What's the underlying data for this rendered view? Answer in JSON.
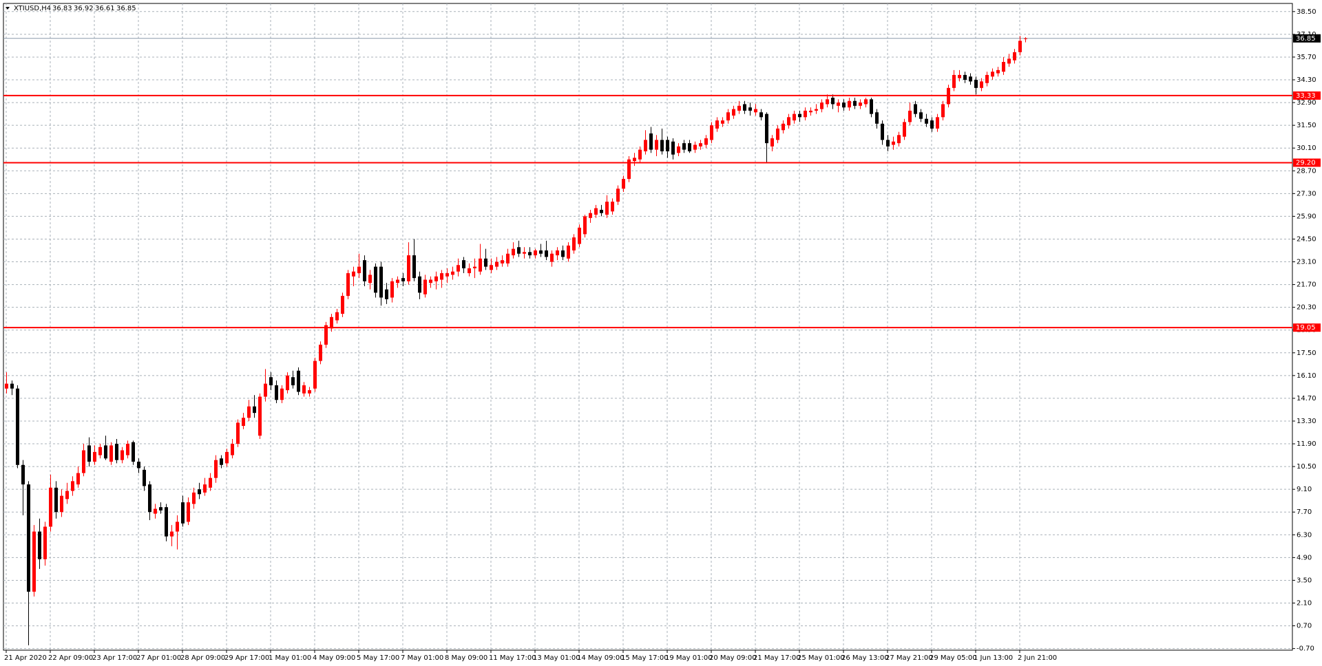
{
  "chart_data": {
    "type": "candlestick",
    "symbol": "XTIUSD,H4",
    "up_color": "#ff0000",
    "down_color": "#000000",
    "level_color": "#ff0000",
    "grid": true,
    "ylim": [
      -0.8,
      39.0
    ],
    "yticks": [
      {
        "value": 38.5,
        "label": "38.50"
      },
      {
        "value": 37.1,
        "label": "37.10"
      },
      {
        "value": 35.7,
        "label": "35.70"
      },
      {
        "value": 34.3,
        "label": "34.30"
      },
      {
        "value": 32.9,
        "label": "32.90"
      },
      {
        "value": 31.5,
        "label": "31.50"
      },
      {
        "value": 30.1,
        "label": "30.10"
      },
      {
        "value": 28.7,
        "label": "28.70"
      },
      {
        "value": 27.3,
        "label": "27.30"
      },
      {
        "value": 25.9,
        "label": "25.90"
      },
      {
        "value": 24.5,
        "label": "24.50"
      },
      {
        "value": 23.1,
        "label": "23.10"
      },
      {
        "value": 21.7,
        "label": "21.70"
      },
      {
        "value": 20.3,
        "label": "20.30"
      },
      {
        "value": 18.9,
        "label": "18.90"
      },
      {
        "value": 17.5,
        "label": "17.50"
      },
      {
        "value": 16.1,
        "label": "16.10"
      },
      {
        "value": 14.7,
        "label": "14.70"
      },
      {
        "value": 13.3,
        "label": "13.30"
      },
      {
        "value": 11.9,
        "label": "11.90"
      },
      {
        "value": 10.5,
        "label": "10.50"
      },
      {
        "value": 9.1,
        "label": "9.10"
      },
      {
        "value": 7.7,
        "label": "7.70"
      },
      {
        "value": 6.3,
        "label": "6.30"
      },
      {
        "value": 4.9,
        "label": "4.90"
      },
      {
        "value": 3.5,
        "label": "3.50"
      },
      {
        "value": 2.1,
        "label": "2.10"
      },
      {
        "value": 0.7,
        "label": "0.70"
      },
      {
        "value": -0.7,
        "label": "-0.70"
      }
    ],
    "xticks": [
      {
        "value": 0,
        "label": "21 Apr 2020"
      },
      {
        "value": 8,
        "label": "22 Apr 09:00"
      },
      {
        "value": 16,
        "label": "23 Apr 17:00"
      },
      {
        "value": 24,
        "label": "27 Apr 01:00"
      },
      {
        "value": 32,
        "label": "28 Apr 09:00"
      },
      {
        "value": 40,
        "label": "29 Apr 17:00"
      },
      {
        "value": 48,
        "label": "1 May 01:00"
      },
      {
        "value": 56,
        "label": "4 May 09:00"
      },
      {
        "value": 64,
        "label": "5 May 17:00"
      },
      {
        "value": 72,
        "label": "7 May 01:00"
      },
      {
        "value": 80,
        "label": "8 May 09:00"
      },
      {
        "value": 88,
        "label": "11 May 17:00"
      },
      {
        "value": 96,
        "label": "13 May 01:00"
      },
      {
        "value": 104,
        "label": "14 May 09:00"
      },
      {
        "value": 112,
        "label": "15 May 17:00"
      },
      {
        "value": 120,
        "label": "19 May 01:00"
      },
      {
        "value": 128,
        "label": "20 May 09:00"
      },
      {
        "value": 136,
        "label": "21 May 17:00"
      },
      {
        "value": 144,
        "label": "25 May 01:00"
      },
      {
        "value": 152,
        "label": "26 May 13:00"
      },
      {
        "value": 160,
        "label": "27 May 21:00"
      },
      {
        "value": 168,
        "label": "29 May 05:00"
      },
      {
        "value": 176,
        "label": "1 Jun 13:00"
      },
      {
        "value": 184,
        "label": "2 Jun 21:00"
      }
    ],
    "levels": [
      33.33,
      {
        "value": 29.2,
        "label": "29.20"
      },
      19.05
    ],
    "last_price": 36.85,
    "candles": [
      [
        15.3,
        16.3,
        15.0,
        15.6
      ],
      [
        15.6,
        15.8,
        14.9,
        15.3
      ],
      [
        15.3,
        15.5,
        10.4,
        10.6
      ],
      [
        10.6,
        10.9,
        7.5,
        9.4
      ],
      [
        9.4,
        9.6,
        -0.5,
        2.8
      ],
      [
        2.8,
        6.9,
        2.5,
        6.5
      ],
      [
        6.5,
        7.3,
        4.2,
        4.8
      ],
      [
        4.8,
        7.1,
        4.4,
        6.8
      ],
      [
        6.8,
        10.0,
        6.5,
        9.2
      ],
      [
        9.2,
        9.6,
        7.3,
        7.7
      ],
      [
        7.7,
        9.1,
        7.4,
        8.7
      ],
      [
        8.5,
        9.5,
        8.2,
        9.0
      ],
      [
        9.0,
        9.9,
        8.7,
        9.6
      ],
      [
        9.4,
        10.5,
        9.2,
        10.1
      ],
      [
        10.1,
        11.9,
        9.9,
        11.5
      ],
      [
        11.8,
        12.3,
        10.5,
        10.8
      ],
      [
        10.8,
        11.8,
        10.6,
        11.4
      ],
      [
        11.2,
        11.9,
        11.0,
        11.7
      ],
      [
        11.8,
        12.4,
        10.9,
        11.0
      ],
      [
        10.8,
        12.0,
        10.6,
        11.8
      ],
      [
        11.9,
        12.2,
        10.7,
        10.9
      ],
      [
        10.9,
        11.7,
        10.7,
        11.5
      ],
      [
        11.2,
        12.1,
        11.0,
        11.9
      ],
      [
        12.0,
        12.1,
        10.6,
        10.8
      ],
      [
        10.8,
        11.0,
        10.1,
        10.4
      ],
      [
        10.3,
        10.5,
        9.0,
        9.3
      ],
      [
        9.4,
        9.6,
        7.2,
        7.7
      ],
      [
        7.6,
        8.2,
        7.3,
        7.9
      ],
      [
        8.0,
        8.3,
        7.6,
        7.8
      ],
      [
        8.0,
        8.2,
        5.9,
        6.2
      ],
      [
        6.2,
        6.9,
        5.6,
        6.5
      ],
      [
        6.5,
        7.5,
        5.4,
        7.1
      ],
      [
        8.3,
        8.7,
        6.8,
        7.0
      ],
      [
        7.1,
        8.6,
        6.9,
        8.3
      ],
      [
        8.2,
        9.2,
        7.9,
        8.9
      ],
      [
        9.1,
        9.5,
        8.5,
        8.8
      ],
      [
        8.9,
        9.8,
        8.7,
        9.4
      ],
      [
        9.2,
        10.1,
        9.0,
        9.8
      ],
      [
        9.8,
        11.2,
        9.5,
        10.9
      ],
      [
        11.0,
        11.2,
        10.4,
        10.6
      ],
      [
        10.7,
        11.6,
        10.5,
        11.4
      ],
      [
        11.2,
        12.2,
        11.0,
        11.9
      ],
      [
        11.9,
        13.4,
        11.7,
        13.2
      ],
      [
        13.0,
        13.8,
        12.8,
        13.5
      ],
      [
        13.5,
        14.6,
        13.3,
        14.2
      ],
      [
        14.2,
        14.9,
        13.5,
        13.8
      ],
      [
        12.4,
        15.0,
        12.2,
        14.8
      ],
      [
        14.8,
        16.5,
        14.5,
        15.6
      ],
      [
        16.0,
        16.3,
        15.2,
        15.5
      ],
      [
        15.5,
        15.8,
        14.4,
        14.6
      ],
      [
        14.6,
        15.5,
        14.4,
        15.3
      ],
      [
        15.2,
        16.3,
        15.0,
        16.1
      ],
      [
        16.0,
        16.4,
        15.3,
        15.5
      ],
      [
        16.4,
        16.6,
        14.9,
        15.1
      ],
      [
        15.0,
        15.7,
        14.8,
        15.5
      ],
      [
        15.0,
        15.4,
        14.8,
        15.2
      ],
      [
        15.3,
        17.2,
        15.1,
        17.0
      ],
      [
        17.0,
        18.2,
        16.8,
        18.0
      ],
      [
        18.0,
        19.4,
        17.8,
        19.2
      ],
      [
        19.0,
        19.9,
        18.8,
        19.7
      ],
      [
        19.5,
        20.2,
        19.3,
        20.0
      ],
      [
        19.9,
        21.2,
        19.7,
        21.0
      ],
      [
        21.0,
        22.6,
        20.8,
        22.4
      ],
      [
        22.2,
        22.8,
        21.6,
        22.5
      ],
      [
        22.4,
        23.6,
        22.1,
        22.8
      ],
      [
        23.2,
        23.5,
        21.6,
        21.9
      ],
      [
        21.8,
        22.6,
        21.4,
        22.3
      ],
      [
        22.8,
        23.0,
        20.9,
        21.2
      ],
      [
        22.8,
        23.1,
        20.4,
        20.9
      ],
      [
        21.4,
        21.8,
        20.5,
        20.8
      ],
      [
        20.9,
        22.1,
        20.6,
        21.9
      ],
      [
        21.8,
        22.2,
        21.5,
        22.0
      ],
      [
        22.1,
        22.4,
        21.6,
        21.9
      ],
      [
        21.9,
        24.3,
        21.7,
        23.5
      ],
      [
        23.5,
        24.5,
        21.9,
        22.1
      ],
      [
        22.2,
        22.5,
        20.8,
        21.2
      ],
      [
        21.1,
        22.3,
        20.9,
        22.0
      ],
      [
        21.8,
        22.2,
        21.5,
        22.0
      ],
      [
        21.9,
        22.5,
        21.4,
        22.2
      ],
      [
        22.0,
        22.6,
        21.5,
        22.4
      ],
      [
        22.2,
        22.7,
        21.8,
        22.4
      ],
      [
        22.3,
        22.8,
        22.0,
        22.5
      ],
      [
        22.5,
        23.3,
        22.2,
        22.9
      ],
      [
        23.2,
        23.4,
        22.4,
        22.7
      ],
      [
        22.4,
        23.0,
        22.2,
        22.7
      ],
      [
        22.7,
        23.3,
        22.1,
        22.8
      ],
      [
        22.5,
        24.2,
        22.3,
        23.3
      ],
      [
        23.3,
        23.9,
        22.6,
        22.8
      ],
      [
        22.6,
        23.3,
        22.4,
        22.9
      ],
      [
        22.8,
        23.4,
        22.6,
        23.1
      ],
      [
        23.0,
        23.5,
        22.8,
        23.2
      ],
      [
        23.0,
        23.9,
        22.8,
        23.6
      ],
      [
        23.5,
        24.3,
        23.3,
        23.9
      ],
      [
        24.0,
        24.4,
        23.4,
        23.6
      ],
      [
        23.6,
        24.0,
        23.3,
        23.7
      ],
      [
        23.7,
        24.0,
        23.3,
        23.5
      ],
      [
        23.5,
        23.9,
        23.3,
        23.8
      ],
      [
        23.8,
        24.2,
        23.4,
        23.6
      ],
      [
        23.8,
        24.4,
        23.2,
        23.4
      ],
      [
        23.1,
        23.8,
        22.8,
        23.6
      ],
      [
        23.5,
        24.0,
        23.2,
        23.8
      ],
      [
        23.8,
        24.1,
        23.2,
        23.4
      ],
      [
        23.3,
        24.3,
        23.1,
        24.1
      ],
      [
        23.8,
        24.8,
        23.6,
        24.6
      ],
      [
        24.2,
        25.4,
        24.0,
        25.2
      ],
      [
        24.8,
        26.0,
        24.6,
        25.9
      ],
      [
        25.8,
        26.3,
        25.5,
        26.1
      ],
      [
        26.0,
        26.6,
        25.8,
        26.4
      ],
      [
        26.3,
        26.6,
        25.9,
        26.1
      ],
      [
        26.0,
        27.2,
        25.8,
        26.8
      ],
      [
        26.2,
        27.0,
        26.0,
        26.8
      ],
      [
        26.8,
        27.8,
        26.6,
        27.6
      ],
      [
        27.6,
        28.4,
        27.4,
        28.2
      ],
      [
        28.2,
        29.6,
        28.0,
        29.4
      ],
      [
        29.3,
        29.8,
        29.0,
        29.5
      ],
      [
        29.4,
        30.2,
        29.2,
        30.0
      ],
      [
        29.9,
        31.2,
        29.7,
        30.6
      ],
      [
        31.0,
        31.4,
        29.8,
        30.0
      ],
      [
        30.0,
        30.9,
        29.6,
        30.6
      ],
      [
        30.6,
        31.3,
        29.7,
        29.9
      ],
      [
        30.6,
        30.8,
        29.5,
        29.9
      ],
      [
        30.5,
        30.7,
        29.4,
        29.7
      ],
      [
        29.8,
        30.4,
        29.6,
        30.2
      ],
      [
        30.4,
        30.6,
        29.8,
        30.0
      ],
      [
        30.4,
        30.6,
        29.8,
        29.9
      ],
      [
        30.0,
        30.5,
        29.8,
        30.3
      ],
      [
        30.2,
        30.6,
        30.0,
        30.4
      ],
      [
        30.3,
        30.9,
        30.1,
        30.7
      ],
      [
        30.6,
        31.7,
        30.4,
        31.5
      ],
      [
        31.3,
        32.0,
        31.1,
        31.8
      ],
      [
        31.6,
        32.0,
        31.4,
        31.8
      ],
      [
        31.8,
        32.5,
        31.6,
        32.3
      ],
      [
        32.1,
        32.7,
        31.9,
        32.5
      ],
      [
        32.4,
        33.0,
        32.2,
        32.7
      ],
      [
        32.8,
        33.0,
        32.2,
        32.4
      ],
      [
        32.6,
        32.9,
        32.1,
        32.4
      ],
      [
        32.3,
        32.8,
        32.1,
        32.5
      ],
      [
        32.3,
        32.5,
        31.8,
        32.0
      ],
      [
        32.2,
        32.3,
        29.2,
        30.4
      ],
      [
        30.2,
        30.9,
        29.9,
        30.7
      ],
      [
        30.6,
        31.5,
        30.4,
        31.3
      ],
      [
        31.2,
        31.8,
        31.0,
        31.6
      ],
      [
        31.5,
        32.2,
        31.3,
        32.0
      ],
      [
        31.8,
        32.4,
        31.6,
        32.2
      ],
      [
        32.2,
        32.4,
        31.7,
        32.0
      ],
      [
        32.0,
        32.6,
        31.8,
        32.4
      ],
      [
        32.3,
        32.6,
        32.1,
        32.4
      ],
      [
        32.4,
        32.8,
        32.2,
        32.5
      ],
      [
        32.5,
        33.1,
        32.3,
        32.9
      ],
      [
        32.8,
        33.4,
        32.6,
        33.1
      ],
      [
        33.2,
        33.4,
        32.5,
        32.8
      ],
      [
        32.7,
        33.1,
        32.3,
        32.9
      ],
      [
        32.9,
        33.1,
        32.4,
        32.6
      ],
      [
        32.6,
        33.2,
        32.4,
        33.0
      ],
      [
        33.0,
        33.2,
        32.5,
        32.7
      ],
      [
        32.7,
        33.1,
        32.5,
        32.9
      ],
      [
        32.8,
        33.2,
        32.6,
        33.1
      ],
      [
        33.1,
        33.2,
        32.0,
        32.2
      ],
      [
        32.3,
        32.5,
        31.3,
        31.6
      ],
      [
        31.6,
        31.8,
        30.3,
        30.6
      ],
      [
        30.6,
        30.9,
        29.9,
        30.2
      ],
      [
        30.3,
        30.8,
        30.0,
        30.5
      ],
      [
        30.4,
        31.1,
        30.2,
        30.9
      ],
      [
        30.8,
        31.9,
        30.6,
        31.7
      ],
      [
        31.7,
        32.9,
        31.5,
        32.4
      ],
      [
        32.8,
        33.0,
        32.0,
        32.2
      ],
      [
        32.3,
        32.5,
        31.7,
        31.9
      ],
      [
        31.9,
        32.2,
        31.4,
        31.6
      ],
      [
        31.8,
        32.0,
        31.1,
        31.3
      ],
      [
        31.3,
        32.2,
        31.1,
        32.0
      ],
      [
        32.0,
        33.0,
        31.8,
        32.8
      ],
      [
        32.8,
        34.0,
        32.6,
        33.8
      ],
      [
        33.8,
        34.9,
        33.6,
        34.6
      ],
      [
        34.4,
        34.9,
        34.2,
        34.6
      ],
      [
        34.6,
        34.8,
        34.1,
        34.3
      ],
      [
        34.5,
        34.7,
        34.0,
        34.2
      ],
      [
        34.3,
        34.5,
        33.4,
        33.8
      ],
      [
        33.8,
        34.4,
        33.6,
        34.2
      ],
      [
        34.1,
        34.8,
        33.9,
        34.6
      ],
      [
        34.5,
        35.0,
        34.3,
        34.8
      ],
      [
        34.7,
        35.1,
        34.5,
        34.9
      ],
      [
        34.8,
        35.7,
        34.6,
        35.4
      ],
      [
        35.3,
        35.9,
        35.1,
        35.6
      ],
      [
        35.5,
        36.2,
        35.3,
        36.0
      ],
      [
        36.0,
        37.0,
        35.8,
        36.7
      ],
      [
        36.83,
        36.92,
        36.61,
        36.85
      ]
    ]
  }
}
